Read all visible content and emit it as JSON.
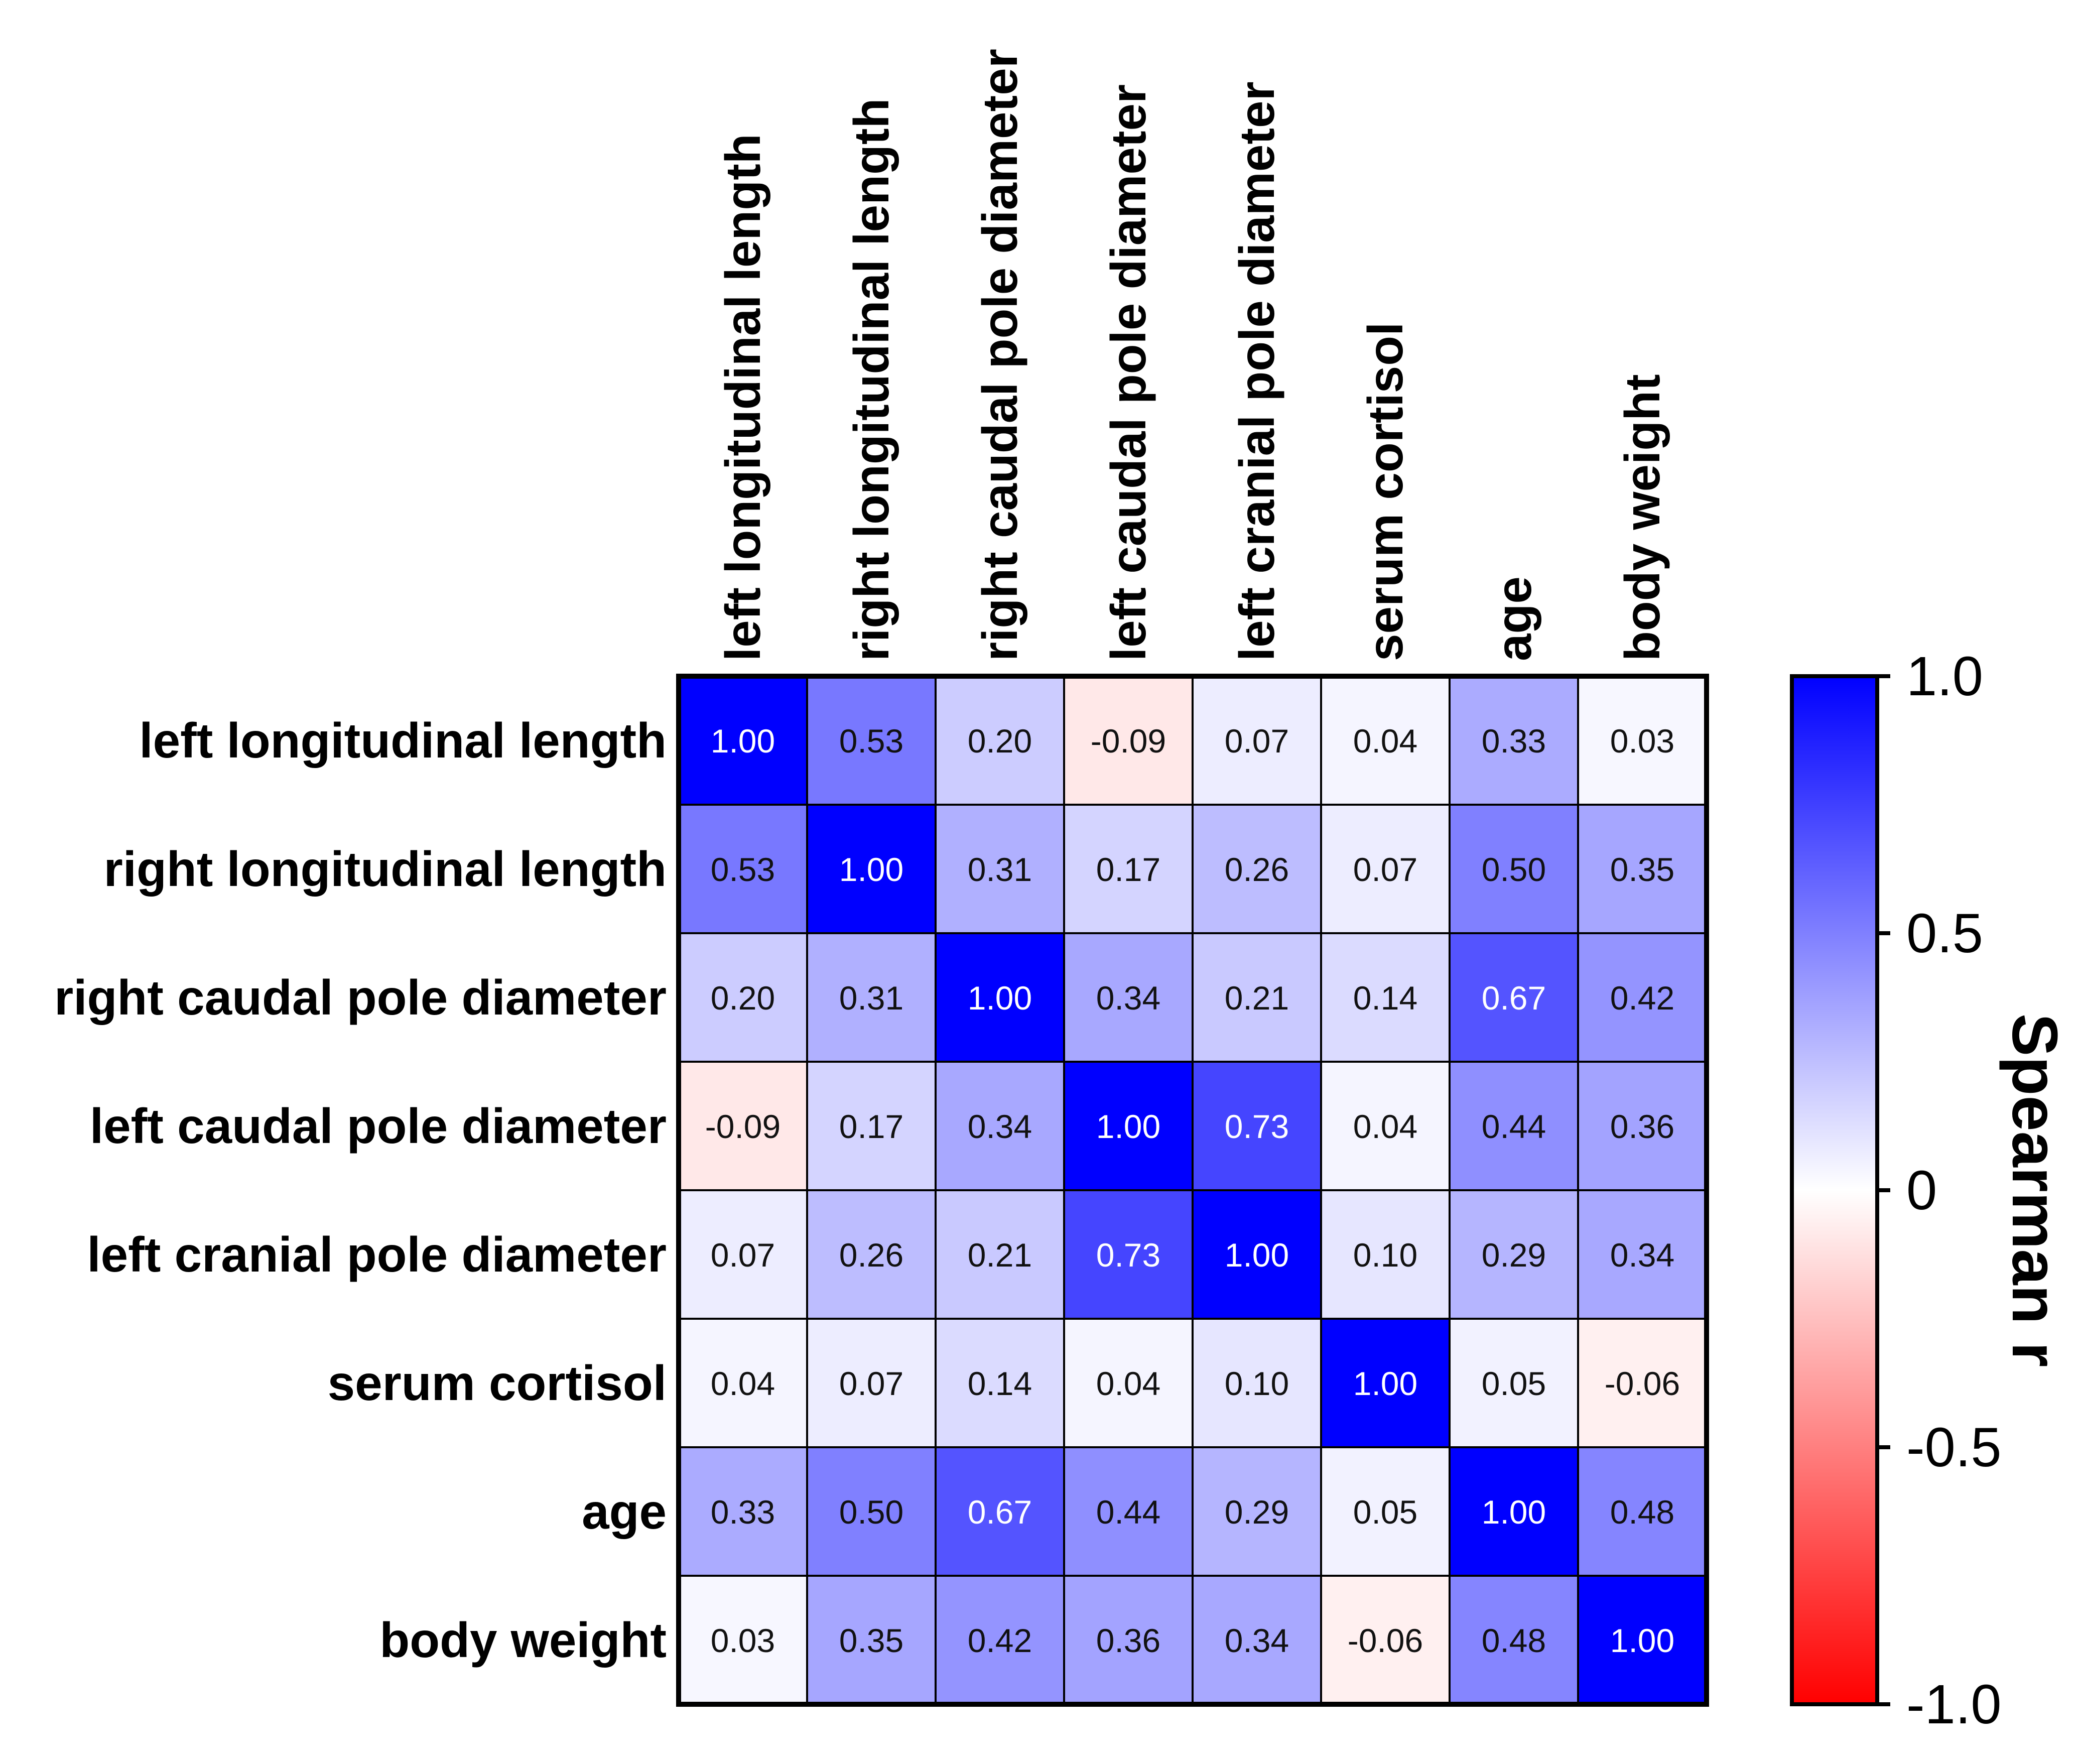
{
  "chart_data": {
    "type": "heatmap",
    "title": "",
    "xlabel": "",
    "ylabel": "",
    "variables": [
      "left longitudinal length",
      "right longitudinal length",
      "right caudal pole diameter",
      "left caudal pole diameter",
      "left cranial pole diameter",
      "serum cortisol",
      "age",
      "body weight"
    ],
    "matrix": [
      [
        1.0,
        0.53,
        0.2,
        -0.09,
        0.07,
        0.04,
        0.33,
        0.03
      ],
      [
        0.53,
        1.0,
        0.31,
        0.17,
        0.26,
        0.07,
        0.5,
        0.35
      ],
      [
        0.2,
        0.31,
        1.0,
        0.34,
        0.21,
        0.14,
        0.67,
        0.42
      ],
      [
        -0.09,
        0.17,
        0.34,
        1.0,
        0.73,
        0.04,
        0.44,
        0.36
      ],
      [
        0.07,
        0.26,
        0.21,
        0.73,
        1.0,
        0.1,
        0.29,
        0.34
      ],
      [
        0.04,
        0.07,
        0.14,
        0.04,
        0.1,
        1.0,
        0.05,
        -0.06
      ],
      [
        0.33,
        0.5,
        0.67,
        0.44,
        0.29,
        0.05,
        1.0,
        0.48
      ],
      [
        0.03,
        0.35,
        0.42,
        0.36,
        0.34,
        -0.06,
        0.48,
        1.0
      ]
    ],
    "colorbar": {
      "label": "Spearman r",
      "range": [
        -1.0,
        1.0
      ],
      "ticks": [
        1.0,
        0.5,
        0,
        -0.5,
        -1.0
      ],
      "tick_labels": [
        "1.0",
        "0.5",
        "0",
        "-0.5",
        "-1.0"
      ],
      "colors": {
        "positive": "#0000ff",
        "zero": "#ffffff",
        "negative": "#ff0000"
      }
    },
    "grid": true,
    "legend": "right"
  }
}
